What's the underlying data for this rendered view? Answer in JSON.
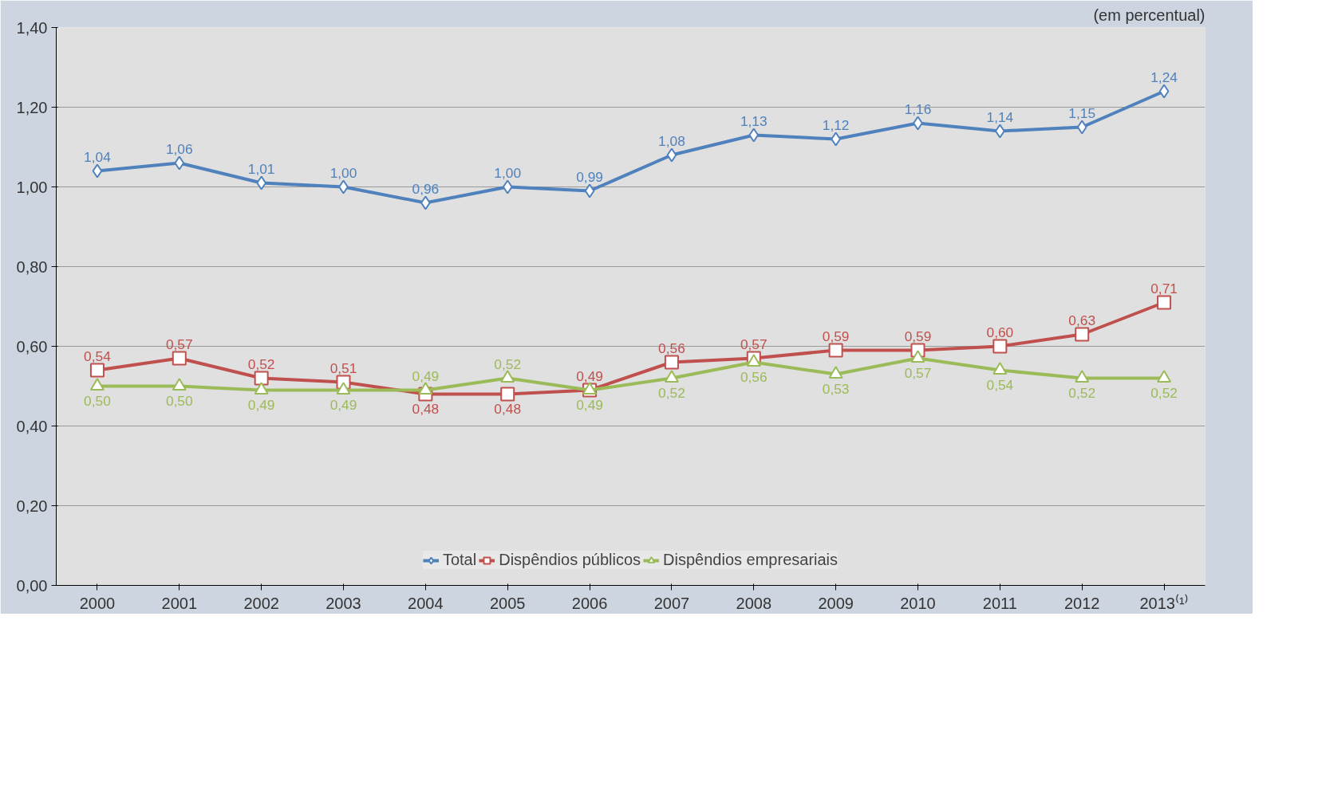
{
  "chart_data": {
    "type": "line",
    "categories": [
      "2000",
      "2001",
      "2002",
      "2003",
      "2004",
      "2005",
      "2006",
      "2007",
      "2008",
      "2009",
      "2010",
      "2011",
      "2012",
      "2013⁽¹⁾"
    ],
    "series": [
      {
        "name": "Total",
        "color": "#4f81bd",
        "marker": "diamond",
        "values": [
          1.04,
          1.06,
          1.01,
          1.0,
          0.96,
          1.0,
          0.99,
          1.08,
          1.13,
          1.12,
          1.16,
          1.14,
          1.15,
          1.24
        ],
        "value_labels": [
          "1,04",
          "1,06",
          "1,01",
          "1,00",
          "0,96",
          "1,00",
          "0,99",
          "1,08",
          "1,13",
          "1,12",
          "1,16",
          "1,14",
          "1,15",
          "1,24"
        ]
      },
      {
        "name": "Dispêndios públicos",
        "color": "#c0504d",
        "marker": "square",
        "values": [
          0.54,
          0.57,
          0.52,
          0.51,
          0.48,
          0.48,
          0.49,
          0.56,
          0.57,
          0.59,
          0.59,
          0.6,
          0.63,
          0.71
        ],
        "value_labels": [
          "0,54",
          "0,57",
          "0,52",
          "0,51",
          "0,48",
          "0,48",
          "0,49",
          "0,56",
          "0,57",
          "0,59",
          "0,59",
          "0,60",
          "0,63",
          "0,71"
        ]
      },
      {
        "name": "Dispêndios empresariais",
        "color": "#9bbb59",
        "marker": "triangle",
        "values": [
          0.5,
          0.5,
          0.49,
          0.49,
          0.49,
          0.52,
          0.49,
          0.52,
          0.56,
          0.53,
          0.57,
          0.54,
          0.52,
          0.52
        ],
        "value_labels": [
          "0,50",
          "0,50",
          "0,49",
          "0,49",
          "0,49",
          "0,52",
          "0,49",
          "0,52",
          "0,56",
          "0,53",
          "0,57",
          "0,54",
          "0,52",
          "0,52"
        ]
      }
    ],
    "ylim": [
      0,
      1.4
    ],
    "yticks": [
      {
        "value": 0,
        "label": "0,00"
      },
      {
        "value": 0.2,
        "label": "0,20"
      },
      {
        "value": 0.4,
        "label": "0,40"
      },
      {
        "value": 0.6,
        "label": "0,60"
      },
      {
        "value": 0.8,
        "label": "0,80"
      },
      {
        "value": 1.0,
        "label": "1,00"
      },
      {
        "value": 1.2,
        "label": "1,20"
      },
      {
        "value": 1.4,
        "label": "1,40"
      }
    ],
    "annotations": [
      "(em percentual)"
    ],
    "grid": "y",
    "legend": "bottom",
    "line_style": "solid"
  }
}
